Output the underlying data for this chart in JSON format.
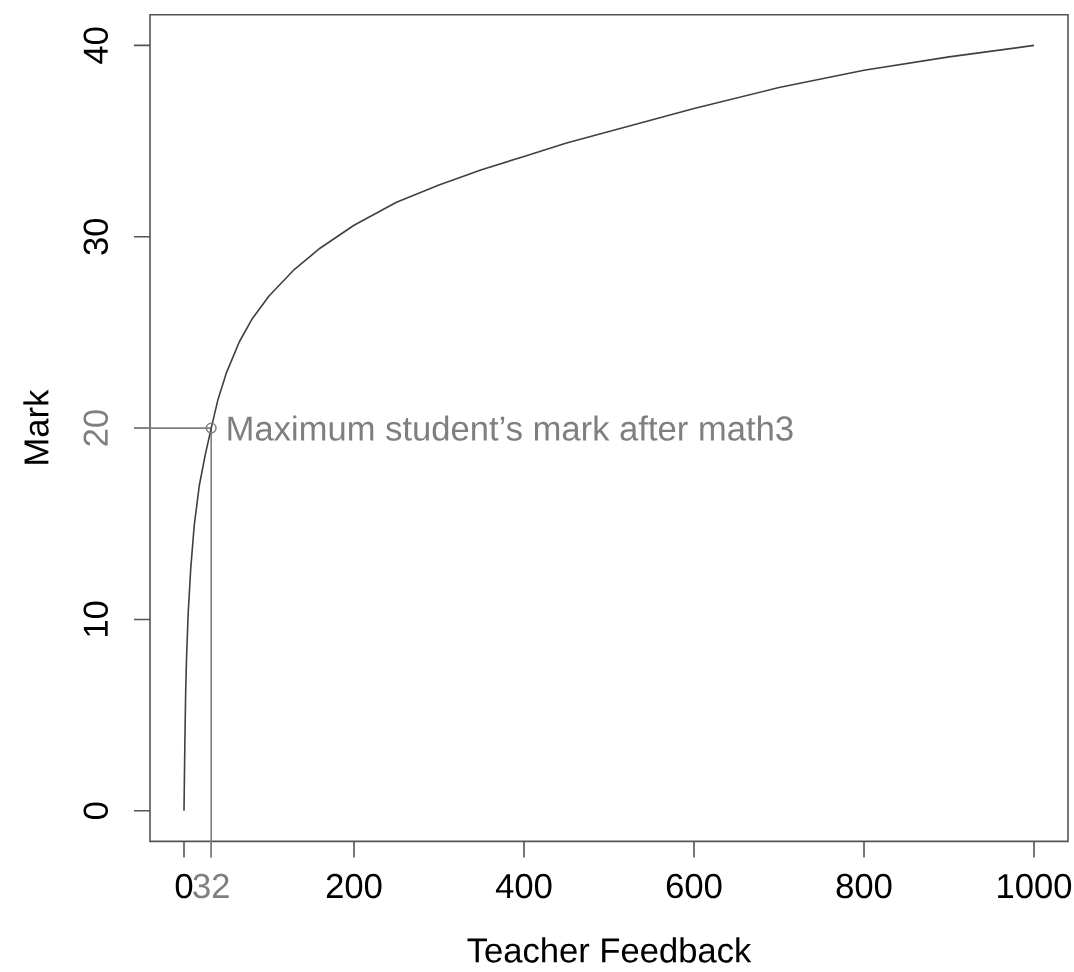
{
  "chart_data": {
    "type": "line",
    "xlabel": "Teacher Feedback",
    "ylabel": "Mark",
    "xlim": [
      -40,
      1040
    ],
    "ylim": [
      -1.6,
      41.6
    ],
    "xticks": [
      0,
      200,
      400,
      600,
      800,
      1000
    ],
    "yticks": [
      0,
      10,
      30,
      40
    ],
    "series": [
      {
        "color": "#404040",
        "x": [
          0,
          1,
          2,
          3,
          5,
          8,
          12,
          18,
          25,
          32,
          40,
          50,
          65,
          80,
          100,
          130,
          160,
          200,
          250,
          300,
          350,
          400,
          450,
          500,
          600,
          700,
          800,
          900,
          1000
        ],
        "values": [
          0,
          3.5,
          6.3,
          8,
          10.4,
          12.7,
          14.9,
          17,
          18.6,
          20,
          21.5,
          22.9,
          24.5,
          25.7,
          26.9,
          28.3,
          29.4,
          30.6,
          31.8,
          32.7,
          33.5,
          34.2,
          34.9,
          35.5,
          36.7,
          37.8,
          38.7,
          39.4,
          40
        ]
      },
      {
        "type": "scatter",
        "color": "#7f7f7f",
        "marker": "circle",
        "x": [
          32
        ],
        "values": [
          20
        ]
      }
    ],
    "ref_lines": [
      {
        "axis": "x",
        "value": 32,
        "label": "32",
        "color": "#7f7f7f"
      },
      {
        "axis": "y",
        "value": 20,
        "label": "20",
        "color": "#7f7f7f"
      }
    ],
    "annotations": [
      {
        "text": "Maximum student’s mark after math3",
        "x": 32,
        "y": 20
      }
    ]
  }
}
